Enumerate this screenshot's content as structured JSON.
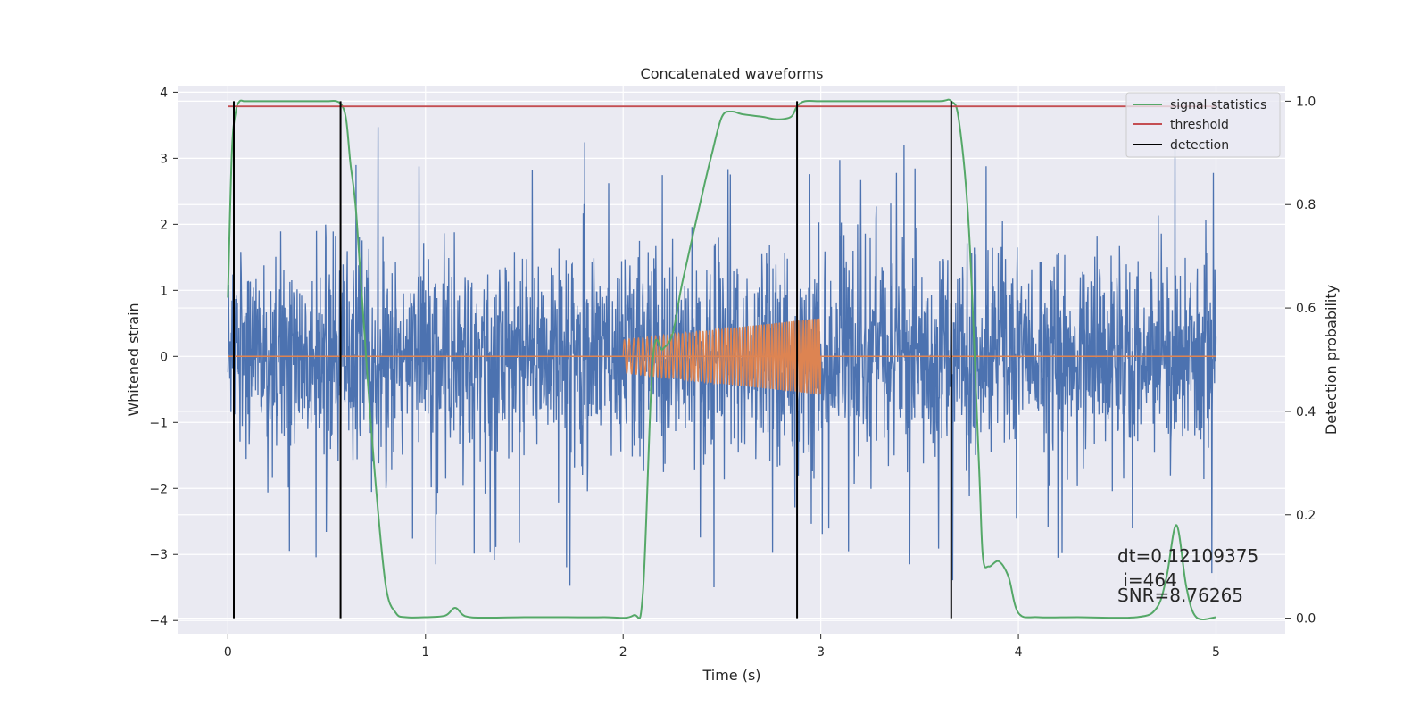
{
  "chart_data": {
    "type": "line",
    "title": "Concatenated waveforms",
    "xlabel": "Time (s)",
    "ylabel": "Whitened strain",
    "y2label": "Detection probability",
    "xlim": [
      -0.25,
      5.35
    ],
    "ylim": [
      -4.2,
      4.1
    ],
    "y2lim": [
      -0.03,
      1.03
    ],
    "xticks": [
      0,
      1,
      2,
      3,
      4,
      5
    ],
    "xtick_labels": [
      "0",
      "1",
      "2",
      "3",
      "4",
      "5"
    ],
    "yticks": [
      -4,
      -3,
      -2,
      -1,
      0,
      1,
      2,
      3,
      4
    ],
    "ytick_labels": [
      "−4",
      "−3",
      "−2",
      "−1",
      "0",
      "1",
      "2",
      "3",
      "4"
    ],
    "y2ticks": [
      0.0,
      0.2,
      0.4,
      0.6,
      0.8,
      1.0
    ],
    "y2tick_labels": [
      "0.0",
      "0.2",
      "0.4",
      "0.6",
      "0.8",
      "1.0"
    ],
    "grid": true,
    "legend_position": "top-right",
    "colors": {
      "strain": "#4c72b0",
      "template": "#dd8452",
      "signal_statistics": "#55a868",
      "threshold": "#c44e52",
      "detection": "#000000",
      "background": "#eaeaf2",
      "grid": "#ffffff"
    },
    "strain": {
      "t_start": 0.0,
      "t_end": 5.0,
      "envelope": 2.5,
      "peak_min": -3.9,
      "peak_max": 3.7
    },
    "template": {
      "t_start": 2.0,
      "t_end": 3.0,
      "amp_start": 0.25,
      "amp_end": 0.58
    },
    "series": [
      {
        "name": "signal statistics",
        "axis": "right",
        "x": [
          0.0,
          0.02,
          0.04,
          0.06,
          0.08,
          0.1,
          0.2,
          0.4,
          0.5,
          0.55,
          0.58,
          0.6,
          0.62,
          0.65,
          0.7,
          0.75,
          0.8,
          0.85,
          0.9,
          1.0,
          1.1,
          1.15,
          1.2,
          1.3,
          1.5,
          1.7,
          1.9,
          2.05,
          2.1,
          2.15,
          2.2,
          2.25,
          2.3,
          2.4,
          2.45,
          2.5,
          2.55,
          2.6,
          2.7,
          2.78,
          2.85,
          2.88,
          2.92,
          3.0,
          3.2,
          3.4,
          3.6,
          3.66,
          3.7,
          3.75,
          3.8,
          3.82,
          3.85,
          3.9,
          3.95,
          4.0,
          4.1,
          4.3,
          4.6,
          4.7,
          4.75,
          4.8,
          4.85,
          4.9,
          5.0
        ],
        "y": [
          0.62,
          0.9,
          0.98,
          1.0,
          1.0,
          1.0,
          1.0,
          1.0,
          1.0,
          1.0,
          0.99,
          0.96,
          0.88,
          0.78,
          0.5,
          0.25,
          0.06,
          0.01,
          0.002,
          0.002,
          0.005,
          0.02,
          0.004,
          0.001,
          0.002,
          0.002,
          0.002,
          0.005,
          0.05,
          0.5,
          0.52,
          0.55,
          0.65,
          0.82,
          0.9,
          0.97,
          0.98,
          0.975,
          0.97,
          0.965,
          0.97,
          0.99,
          1.0,
          1.0,
          1.0,
          1.0,
          1.0,
          1.0,
          0.96,
          0.75,
          0.3,
          0.12,
          0.1,
          0.11,
          0.08,
          0.01,
          0.002,
          0.002,
          0.002,
          0.02,
          0.08,
          0.18,
          0.06,
          0.002,
          0.002
        ]
      },
      {
        "name": "threshold",
        "axis": "right",
        "x": [
          0.0,
          5.0
        ],
        "y": [
          0.99,
          0.99
        ]
      },
      {
        "name": "detection",
        "axis": "right",
        "x": [
          0.03,
          0.57,
          2.88,
          3.66
        ],
        "y_range": [
          0.0,
          1.0
        ]
      }
    ],
    "annotations": [
      {
        "text": "dt=0.12109375"
      },
      {
        "text": " i=464"
      },
      {
        "text": "SNR=8.76265"
      }
    ]
  }
}
